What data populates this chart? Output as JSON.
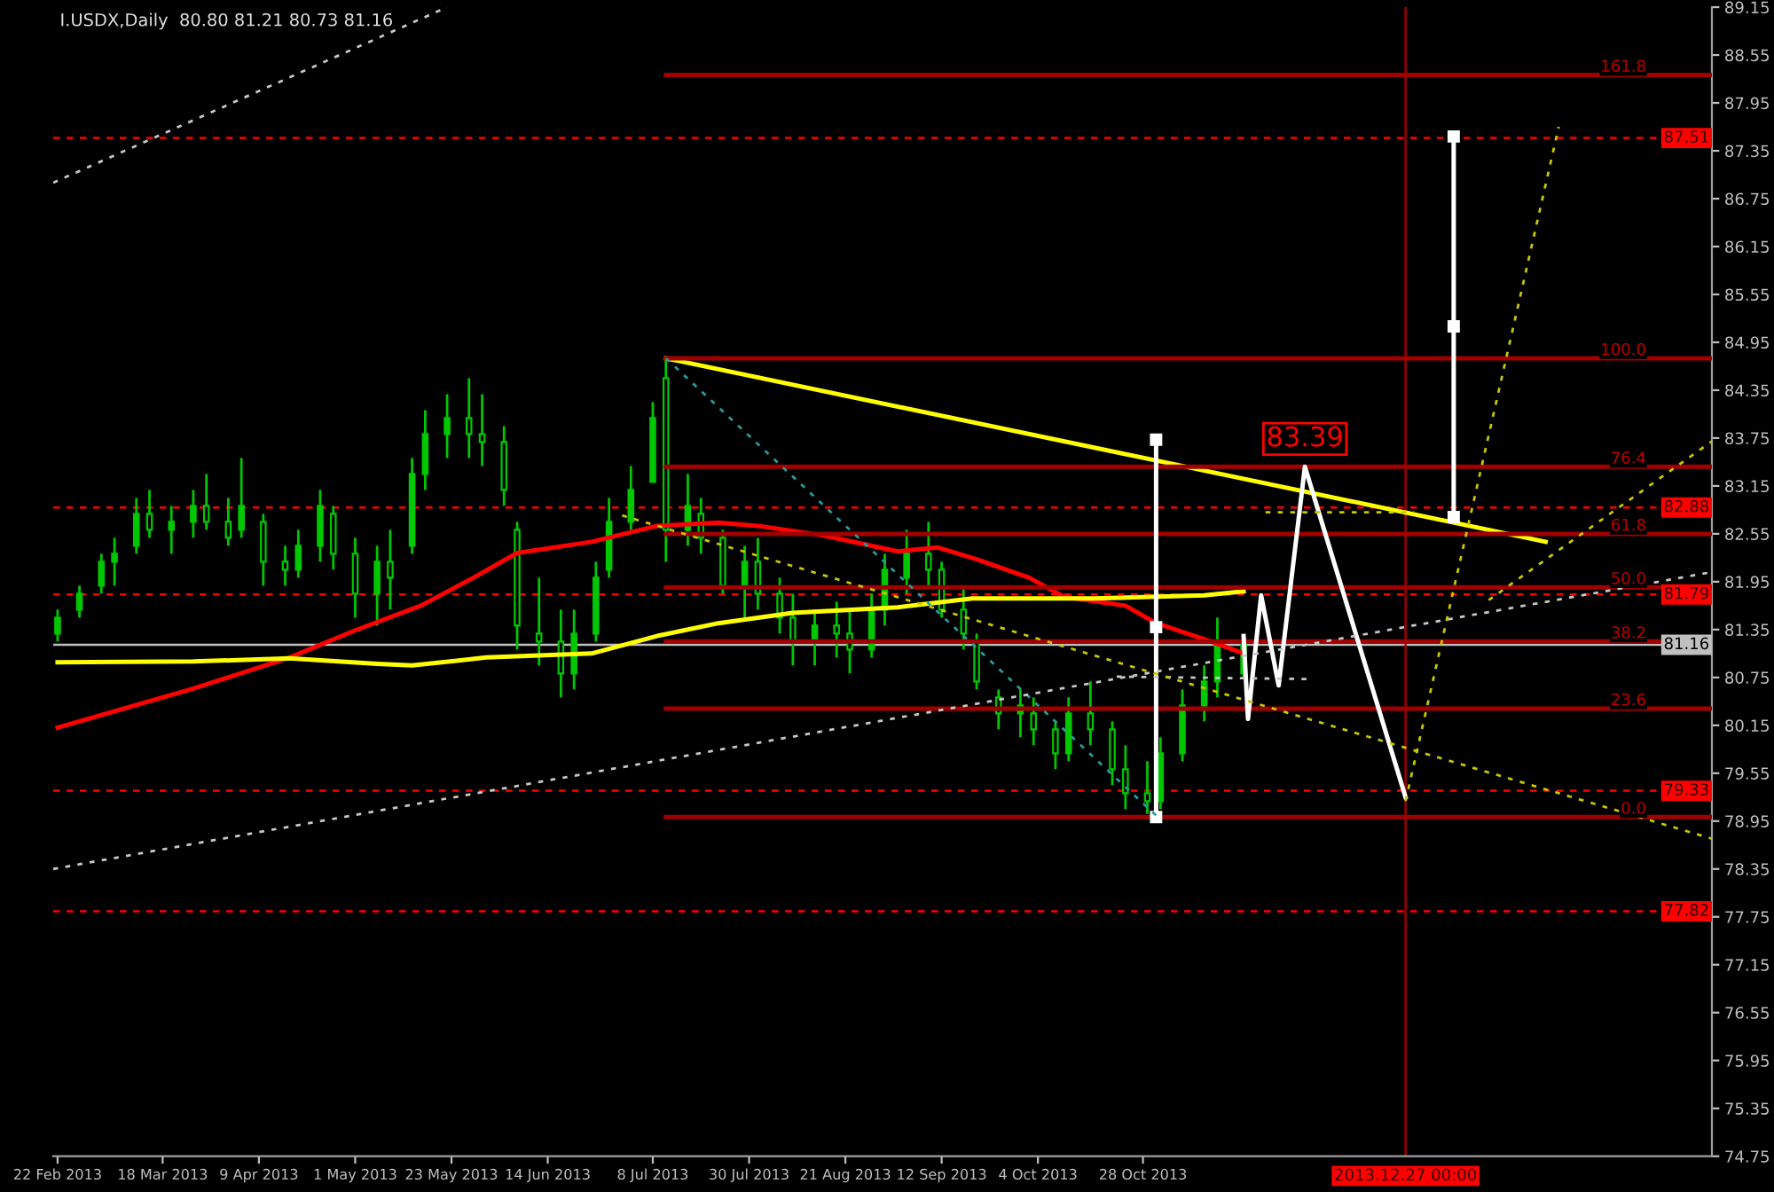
{
  "chart_data": {
    "type": "candlestick",
    "title": "I.USDX,Daily  80.80 81.21 80.73 81.16",
    "color": "#00c800",
    "x": [
      "2013-02-22",
      "2013-02-27",
      "2013-03-04",
      "2013-03-07",
      "2013-03-12",
      "2013-03-15",
      "2013-03-20",
      "2013-03-25",
      "2013-03-28",
      "2013-04-02",
      "2013-04-05",
      "2013-04-10",
      "2013-04-15",
      "2013-04-18",
      "2013-04-23",
      "2013-04-26",
      "2013-05-01",
      "2013-05-06",
      "2013-05-09",
      "2013-05-14",
      "2013-05-17",
      "2013-05-22",
      "2013-05-27",
      "2013-05-30",
      "2013-06-04",
      "2013-06-07",
      "2013-06-12",
      "2013-06-17",
      "2013-06-20",
      "2013-06-25",
      "2013-06-28",
      "2013-07-03",
      "2013-07-08",
      "2013-07-11",
      "2013-07-16",
      "2013-07-19",
      "2013-07-24",
      "2013-07-29",
      "2013-08-01",
      "2013-08-06",
      "2013-08-09",
      "2013-08-14",
      "2013-08-19",
      "2013-08-22",
      "2013-08-27",
      "2013-08-30",
      "2013-09-04",
      "2013-09-09",
      "2013-09-12",
      "2013-09-17",
      "2013-09-20",
      "2013-09-25",
      "2013-09-30",
      "2013-10-03",
      "2013-10-08",
      "2013-10-11",
      "2013-10-16",
      "2013-10-21",
      "2013-10-24",
      "2013-10-29",
      "2013-11-01",
      "2013-11-06",
      "2013-11-11",
      "2013-11-14",
      "2013-11-20"
    ],
    "ohlc": [
      [
        81.3,
        81.6,
        81.2,
        81.5
      ],
      [
        81.6,
        81.9,
        81.5,
        81.8
      ],
      [
        81.9,
        82.3,
        81.8,
        82.2
      ],
      [
        82.2,
        82.5,
        81.9,
        82.3
      ],
      [
        82.4,
        83.0,
        82.3,
        82.8
      ],
      [
        82.8,
        83.1,
        82.5,
        82.6
      ],
      [
        82.6,
        82.9,
        82.3,
        82.7
      ],
      [
        82.7,
        83.1,
        82.5,
        82.9
      ],
      [
        82.9,
        83.3,
        82.6,
        82.7
      ],
      [
        82.7,
        83.0,
        82.4,
        82.5
      ],
      [
        82.6,
        83.5,
        82.5,
        82.9
      ],
      [
        82.7,
        82.8,
        81.9,
        82.2
      ],
      [
        82.2,
        82.4,
        81.9,
        82.1
      ],
      [
        82.1,
        82.6,
        82.0,
        82.4
      ],
      [
        82.4,
        83.1,
        82.2,
        82.9
      ],
      [
        82.8,
        82.9,
        82.1,
        82.3
      ],
      [
        82.3,
        82.5,
        81.5,
        81.8
      ],
      [
        81.8,
        82.4,
        81.4,
        82.2
      ],
      [
        82.2,
        82.6,
        81.6,
        82.0
      ],
      [
        82.4,
        83.5,
        82.3,
        83.3
      ],
      [
        83.3,
        84.1,
        83.1,
        83.8
      ],
      [
        83.8,
        84.3,
        83.5,
        84.0
      ],
      [
        84.0,
        84.5,
        83.5,
        83.8
      ],
      [
        83.8,
        84.3,
        83.4,
        83.7
      ],
      [
        83.7,
        83.9,
        82.9,
        83.1
      ],
      [
        82.6,
        82.7,
        81.1,
        81.4
      ],
      [
        81.3,
        82.0,
        80.9,
        81.2
      ],
      [
        81.2,
        81.6,
        80.5,
        80.8
      ],
      [
        80.8,
        81.6,
        80.6,
        81.3
      ],
      [
        81.3,
        82.2,
        81.2,
        82.0
      ],
      [
        82.1,
        83.0,
        82.0,
        82.7
      ],
      [
        82.7,
        83.4,
        82.6,
        83.1
      ],
      [
        83.2,
        84.2,
        83.2,
        84.0
      ],
      [
        84.5,
        84.75,
        82.2,
        82.6
      ],
      [
        82.6,
        83.3,
        82.4,
        82.9
      ],
      [
        82.8,
        83.0,
        82.3,
        82.5
      ],
      [
        82.5,
        82.6,
        81.8,
        81.9
      ],
      [
        81.9,
        82.4,
        81.5,
        82.2
      ],
      [
        82.2,
        82.5,
        81.6,
        81.8
      ],
      [
        81.8,
        82.0,
        81.3,
        81.5
      ],
      [
        81.5,
        81.8,
        80.9,
        81.2
      ],
      [
        81.2,
        81.6,
        80.9,
        81.4
      ],
      [
        81.4,
        81.7,
        81.0,
        81.3
      ],
      [
        81.3,
        81.6,
        80.8,
        81.1
      ],
      [
        81.1,
        81.8,
        81.0,
        81.6
      ],
      [
        81.6,
        82.3,
        81.4,
        82.1
      ],
      [
        82.0,
        82.6,
        81.8,
        82.3
      ],
      [
        82.3,
        82.7,
        81.9,
        82.1
      ],
      [
        82.1,
        82.2,
        81.5,
        81.6
      ],
      [
        81.6,
        81.9,
        81.1,
        81.3
      ],
      [
        81.2,
        81.3,
        80.6,
        80.7
      ],
      [
        80.5,
        80.6,
        80.1,
        80.3
      ],
      [
        80.3,
        80.6,
        80.0,
        80.4
      ],
      [
        80.3,
        80.5,
        79.9,
        80.1
      ],
      [
        80.1,
        80.2,
        79.6,
        79.8
      ],
      [
        79.8,
        80.5,
        79.7,
        80.3
      ],
      [
        80.3,
        80.7,
        79.9,
        80.1
      ],
      [
        80.1,
        80.2,
        79.4,
        79.6
      ],
      [
        79.6,
        79.9,
        79.1,
        79.3
      ],
      [
        79.3,
        79.7,
        79.04,
        79.2
      ],
      [
        79.2,
        80.0,
        79.1,
        79.8
      ],
      [
        79.8,
        80.6,
        79.7,
        80.4
      ],
      [
        80.4,
        80.9,
        80.2,
        80.7
      ],
      [
        80.7,
        81.5,
        80.5,
        81.2
      ],
      [
        80.8,
        81.21,
        80.73,
        81.16
      ]
    ],
    "series": [
      {
        "type": "line",
        "color": "#ff0000",
        "x": [
          "2013-02-22",
          "2013-03-25",
          "2013-04-16",
          "2013-05-01",
          "2013-05-16",
          "2013-05-28",
          "2013-06-07",
          "2013-06-24",
          "2013-07-09",
          "2013-07-23",
          "2013-08-01",
          "2013-08-16",
          "2013-09-02",
          "2013-09-11",
          "2013-09-20",
          "2013-10-02",
          "2013-10-10",
          "2013-10-24",
          "2013-10-31",
          "2013-11-12",
          "2013-11-20"
        ],
        "values": [
          80.12,
          80.61,
          81.0,
          81.34,
          81.65,
          82.0,
          82.31,
          82.45,
          82.65,
          82.69,
          82.65,
          82.53,
          82.33,
          82.38,
          82.23,
          82.0,
          81.76,
          81.65,
          81.43,
          81.21,
          81.05
        ]
      },
      {
        "type": "line",
        "color": "#ffff00",
        "x": [
          "2013-02-22",
          "2013-03-25",
          "2013-04-16",
          "2013-05-06",
          "2013-05-14",
          "2013-05-31",
          "2013-06-24",
          "2013-07-09",
          "2013-07-23",
          "2013-08-09",
          "2013-09-02",
          "2013-09-19",
          "2013-10-17",
          "2013-11-11",
          "2013-11-20"
        ],
        "values": [
          80.94,
          80.95,
          80.99,
          80.92,
          80.9,
          81.0,
          81.05,
          81.27,
          81.43,
          81.56,
          81.63,
          81.74,
          81.74,
          81.78,
          81.83
        ]
      },
      {
        "type": "line",
        "color": "#ffff00",
        "x": [
          "2013-07-11",
          "2014-01-28"
        ],
        "values": [
          84.75,
          82.45
        ]
      },
      {
        "type": "line",
        "color": "#a00000",
        "x": [
          "2013-07-11",
          "2014-03-07"
        ],
        "values": [
          79.0,
          79.0
        ]
      },
      {
        "type": "line",
        "color": "#a00000",
        "x": [
          "2013-07-11",
          "2014-03-07"
        ],
        "values": [
          80.36,
          80.36
        ]
      },
      {
        "type": "line",
        "color": "#a00000",
        "x": [
          "2013-07-11",
          "2014-03-07"
        ],
        "values": [
          81.2,
          81.2
        ]
      },
      {
        "type": "line",
        "color": "#a00000",
        "x": [
          "2013-07-11",
          "2014-03-07"
        ],
        "values": [
          81.88,
          81.88
        ]
      },
      {
        "type": "line",
        "color": "#a00000",
        "x": [
          "2013-07-11",
          "2014-03-07"
        ],
        "values": [
          82.55,
          82.55
        ]
      },
      {
        "type": "line",
        "color": "#a00000",
        "x": [
          "2013-07-11",
          "2014-03-07"
        ],
        "values": [
          83.39,
          83.39
        ]
      },
      {
        "type": "line",
        "color": "#a00000",
        "x": [
          "2013-07-11",
          "2014-03-07"
        ],
        "values": [
          84.75,
          84.75
        ]
      },
      {
        "type": "line",
        "color": "#a00000",
        "x": [
          "2013-07-11",
          "2014-03-07"
        ],
        "values": [
          88.3,
          88.3
        ]
      },
      {
        "type": "line",
        "color": "#ffffff",
        "x": [
          "2013-11-20",
          "2013-11-21",
          "2013-11-24",
          "2013-11-28",
          "2013-12-04",
          "2013-12-27"
        ],
        "values": [
          81.27,
          80.23,
          81.78,
          80.65,
          83.39,
          79.25
        ]
      },
      {
        "type": "line",
        "color": "#ffffff",
        "marker": "square",
        "x": [
          "2013-10-31",
          "2013-10-31",
          "2013-10-31"
        ],
        "values": [
          79.0,
          81.38,
          83.73
        ]
      },
      {
        "type": "line",
        "color": "#ffffff",
        "marker": "square",
        "x": [
          "2014-01-07",
          "2014-01-07",
          "2014-01-07"
        ],
        "values": [
          82.76,
          85.15,
          87.53
        ]
      },
      {
        "type": "line",
        "color": "#2a9a9a",
        "line_style": "dotted",
        "x": [
          "2013-07-11",
          "2013-10-31"
        ],
        "values": [
          84.75,
          79.02
        ]
      },
      {
        "type": "line",
        "color": "#c8c8c8",
        "line_style": "dotted",
        "x": [
          "2013-02-21",
          "2014-03-07"
        ],
        "values": [
          78.35,
          82.07
        ]
      },
      {
        "type": "line",
        "color": "#c8c8c8",
        "line_style": "dotted",
        "x": [
          "2013-02-21",
          "2013-05-22"
        ],
        "values": [
          86.95,
          89.15
        ]
      },
      {
        "type": "line",
        "color": "#c8c8c8",
        "line_style": "dotted",
        "x": [
          "2013-10-22",
          "2013-12-05"
        ],
        "values": [
          80.76,
          80.73
        ]
      },
      {
        "type": "line",
        "color": "#c8c800",
        "line_style": "dotted",
        "x": [
          "2013-07-01",
          "2014-03-07"
        ],
        "values": [
          82.78,
          78.73
        ]
      },
      {
        "type": "line",
        "color": "#c8c800",
        "line_style": "dotted",
        "x": [
          "2013-11-25",
          "2013-12-29"
        ],
        "values": [
          82.82,
          82.82
        ]
      },
      {
        "type": "line",
        "color": "#c8c800",
        "line_style": "dotted",
        "x": [
          "2013-12-27",
          "2014-01-31"
        ],
        "values": [
          79.2,
          87.65
        ]
      },
      {
        "type": "line",
        "color": "#c8c800",
        "line_style": "dotted",
        "x": [
          "2014-01-15",
          "2014-03-07"
        ],
        "values": [
          81.72,
          83.71
        ]
      }
    ],
    "xlim": [
      "2013-02-21",
      "2014-03-07"
    ],
    "xticks": [
      {
        "value": "2013-02-22",
        "label": "22 Feb 2013"
      },
      {
        "value": "2013-03-18",
        "label": "18 Mar 2013"
      },
      {
        "value": "2013-04-09",
        "label": "9 Apr 2013"
      },
      {
        "value": "2013-05-01",
        "label": "1 May 2013"
      },
      {
        "value": "2013-05-23",
        "label": "23 May 2013"
      },
      {
        "value": "2013-06-14",
        "label": "14 Jun 2013"
      },
      {
        "value": "2013-07-08",
        "label": "8 Jul 2013"
      },
      {
        "value": "2013-07-30",
        "label": "30 Jul 2013"
      },
      {
        "value": "2013-08-21",
        "label": "21 Aug 2013"
      },
      {
        "value": "2013-09-12",
        "label": "12 Sep 2013"
      },
      {
        "value": "2013-10-04",
        "label": "4 Oct 2013"
      },
      {
        "value": "2013-10-28",
        "label": "28 Oct 2013"
      }
    ],
    "ylim": [
      74.75,
      89.15
    ],
    "yticks": [
      89.15,
      88.55,
      87.95,
      87.35,
      86.75,
      86.15,
      85.55,
      84.95,
      84.35,
      83.75,
      83.15,
      82.55,
      81.95,
      81.35,
      80.75,
      80.15,
      79.55,
      78.95,
      78.35,
      77.75,
      77.15,
      76.55,
      75.95,
      75.35,
      74.75
    ],
    "ref_lines": [
      {
        "axis": "y",
        "value": 87.51,
        "label": "87.51",
        "color": "#ff0000",
        "line_style": "dashed"
      },
      {
        "axis": "y",
        "value": 82.88,
        "label": "82.88",
        "color": "#ff0000",
        "line_style": "dashed"
      },
      {
        "axis": "y",
        "value": 81.79,
        "label": "81.79",
        "color": "#ff0000",
        "line_style": "dashed"
      },
      {
        "axis": "y",
        "value": 81.16,
        "label": "81.16",
        "color": "#c0c0c0",
        "line_style": "solid"
      },
      {
        "axis": "y",
        "value": 79.33,
        "label": "79.33",
        "color": "#ff0000",
        "line_style": "dashed"
      },
      {
        "axis": "y",
        "value": 77.82,
        "label": "77.82",
        "color": "#ff0000",
        "line_style": "dashed"
      },
      {
        "axis": "x",
        "value": "2013-12-27T00:00",
        "label": "2013.12.27 00:00",
        "color": "#a00000",
        "line_style": "solid"
      }
    ],
    "annotations": [
      {
        "text": "0.0",
        "x": "2014-02-20",
        "y": 79.0
      },
      {
        "text": "23.6",
        "x": "2014-02-20",
        "y": 80.36
      },
      {
        "text": "38.2",
        "x": "2014-02-20",
        "y": 81.2
      },
      {
        "text": "50.0",
        "x": "2014-02-20",
        "y": 81.88
      },
      {
        "text": "61.8",
        "x": "2014-02-20",
        "y": 82.55
      },
      {
        "text": "76.4",
        "x": "2014-02-20",
        "y": 83.39
      },
      {
        "text": "100.0",
        "x": "2014-02-20",
        "y": 84.75
      },
      {
        "text": "161.8",
        "x": "2014-02-20",
        "y": 88.3
      },
      {
        "text": "83.39",
        "x": "2013-12-04",
        "y": 83.39
      }
    ],
    "grid": false,
    "legend": false
  }
}
